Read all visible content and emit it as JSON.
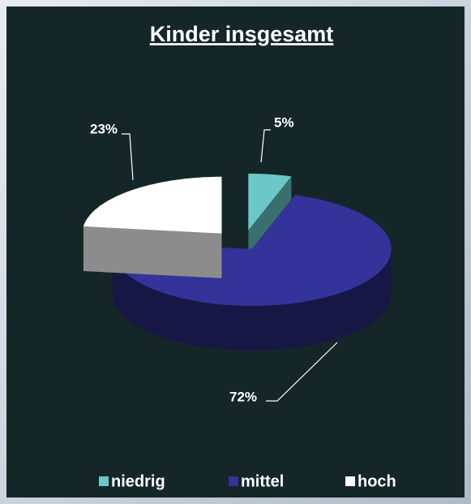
{
  "chart_data": {
    "type": "pie",
    "title": "Kinder insgesamt",
    "categories": [
      "niedrig",
      "mittel",
      "hoch"
    ],
    "values": [
      5,
      72,
      23
    ],
    "value_labels": [
      "5%",
      "72%",
      "23%"
    ],
    "colors": [
      "#6cc8c8",
      "#333399",
      "#ffffff"
    ],
    "legend": "bottom"
  }
}
